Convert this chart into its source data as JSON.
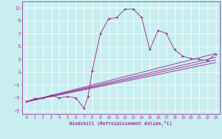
{
  "xlabel": "Windchill (Refroidissement éolien,°C)",
  "bg_color": "#c8eef0",
  "line_color": "#993399",
  "grid_color": "#ffffff",
  "ylim": [
    -5.5,
    12
  ],
  "xlim": [
    -0.5,
    23.5
  ],
  "yticks": [
    -5,
    -3,
    -1,
    1,
    3,
    5,
    7,
    9,
    11
  ],
  "xticks": [
    0,
    1,
    2,
    3,
    4,
    5,
    6,
    7,
    8,
    9,
    10,
    11,
    12,
    13,
    14,
    15,
    16,
    17,
    18,
    19,
    20,
    21,
    22,
    23
  ],
  "main_x": [
    0,
    1,
    2,
    3,
    4,
    5,
    6,
    7,
    7.5,
    8,
    9,
    10,
    11,
    12,
    13,
    14,
    15,
    16,
    17,
    18,
    19,
    20,
    21,
    22,
    23
  ],
  "main_y": [
    -3.6,
    -3.1,
    -3.0,
    -2.6,
    -3.0,
    -2.8,
    -3.0,
    -4.6,
    -2.8,
    1.2,
    7.0,
    9.3,
    9.5,
    10.8,
    10.8,
    9.5,
    4.5,
    7.5,
    7.0,
    4.5,
    3.5,
    3.1,
    3.0,
    2.8,
    3.8
  ],
  "line1_x": [
    0,
    23
  ],
  "line1_y": [
    -3.6,
    3.9
  ],
  "line2_x": [
    0,
    23
  ],
  "line2_y": [
    -3.6,
    3.3
  ],
  "line3_x": [
    0,
    23
  ],
  "line3_y": [
    -3.6,
    2.9
  ],
  "line4_x": [
    0,
    23
  ],
  "line4_y": [
    -3.6,
    2.5
  ]
}
